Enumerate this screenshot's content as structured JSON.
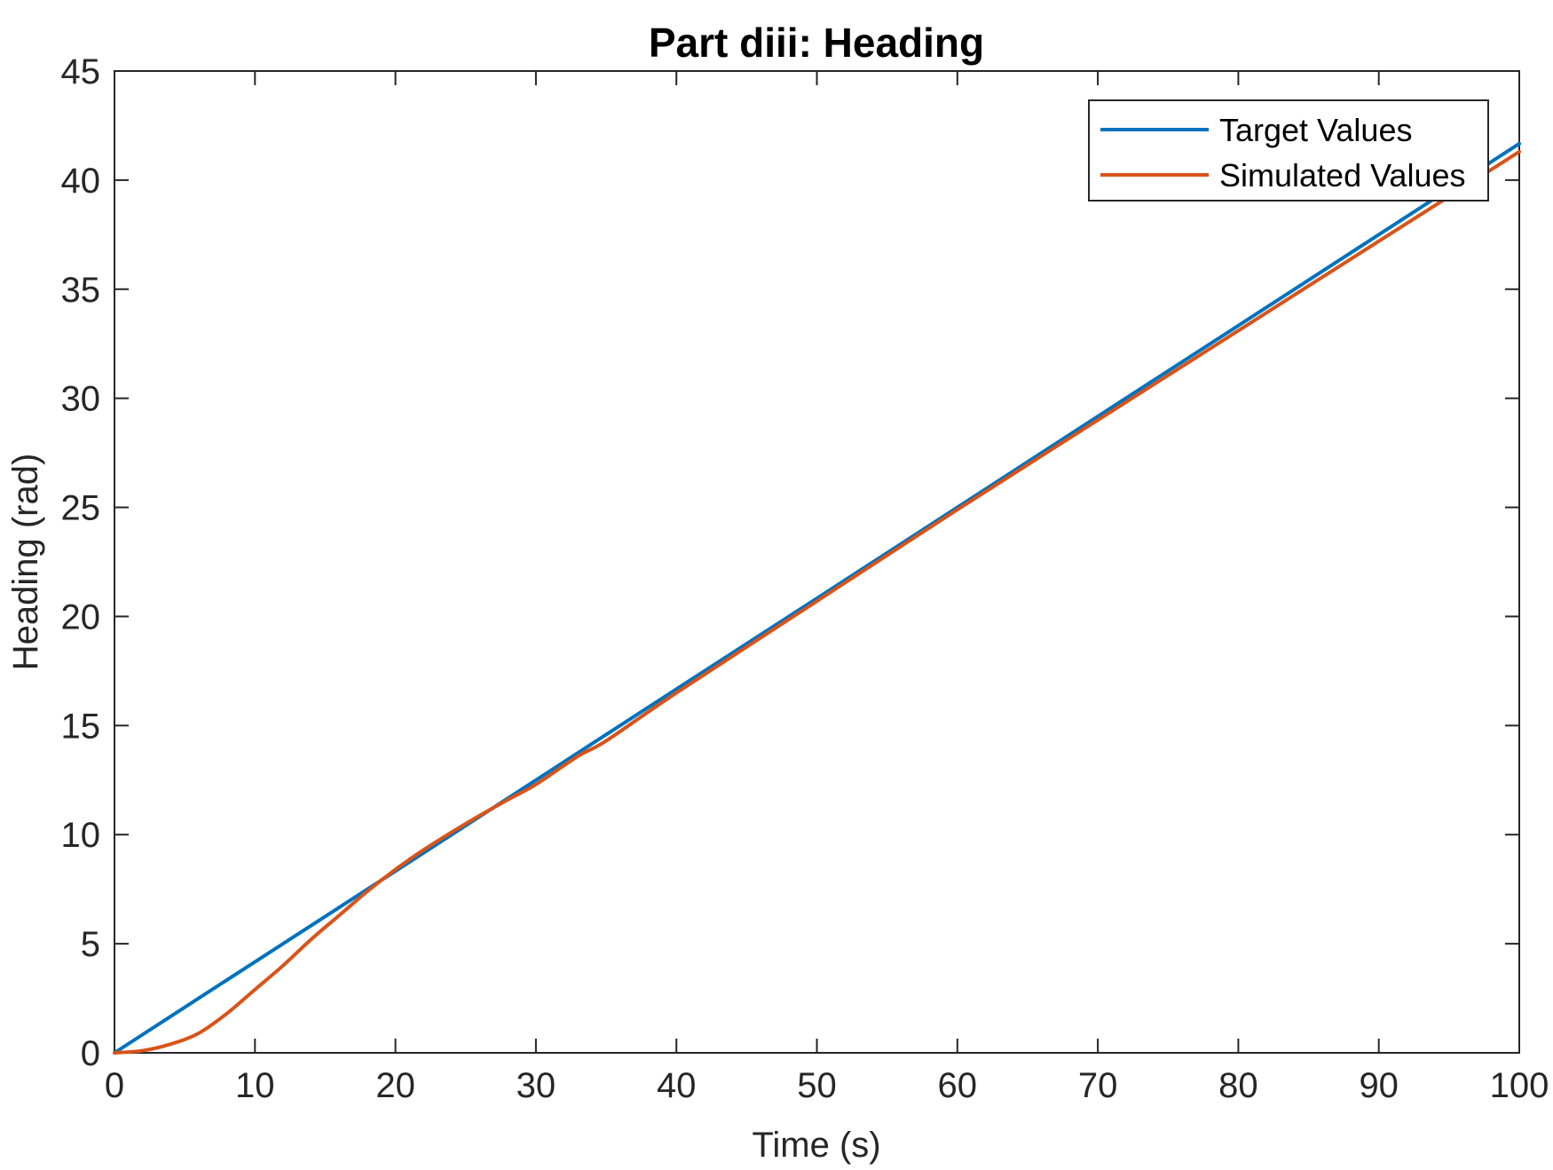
{
  "chart_data": {
    "type": "line",
    "title": "Part diii: Heading",
    "xlabel": "Time (s)",
    "ylabel": "Heading (rad)",
    "xlim": [
      0,
      100
    ],
    "ylim": [
      0,
      45
    ],
    "xticks": [
      0,
      10,
      20,
      30,
      40,
      50,
      60,
      70,
      80,
      90,
      100
    ],
    "yticks": [
      0,
      5,
      10,
      15,
      20,
      25,
      30,
      35,
      40,
      45
    ],
    "grid": false,
    "legend_position": "top-right",
    "series": [
      {
        "name": "Target Values",
        "color": "#0072BD",
        "x": [
          0,
          10,
          20,
          30,
          40,
          50,
          60,
          70,
          80,
          90,
          100
        ],
        "y": [
          0,
          4.17,
          8.33,
          12.5,
          16.67,
          20.83,
          25.0,
          29.17,
          33.33,
          37.5,
          41.67
        ]
      },
      {
        "name": "Simulated Values",
        "color": "#D95319",
        "x": [
          0,
          2,
          4,
          6,
          8,
          10,
          12,
          14,
          16,
          18,
          20,
          22,
          25,
          28,
          30,
          33,
          35,
          40,
          50,
          60,
          70,
          80,
          90,
          100
        ],
        "y": [
          0,
          0.1,
          0.4,
          0.9,
          1.8,
          2.9,
          4.0,
          5.2,
          6.3,
          7.4,
          8.4,
          9.3,
          10.5,
          11.6,
          12.3,
          13.6,
          14.3,
          16.5,
          20.7,
          24.9,
          29.0,
          33.1,
          37.2,
          41.3
        ]
      }
    ]
  }
}
